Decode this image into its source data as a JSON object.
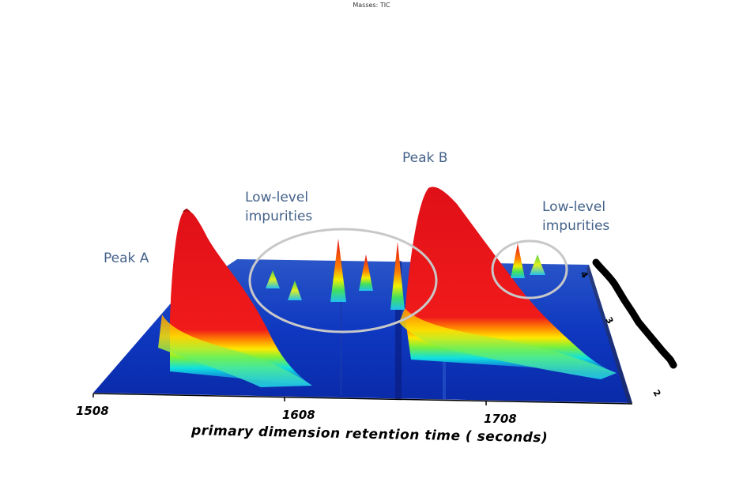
{
  "header": {
    "masses": "Masses: TIC"
  },
  "chart_data": {
    "type": "surface-3d",
    "xlabel": "primary dimension retention time   ( seconds)",
    "x_ticks": [
      "1508",
      "1608",
      "1708"
    ],
    "y_ticks": [
      "4",
      "3",
      "2"
    ],
    "annotations": {
      "peak_a": "Peak A",
      "peak_b": "Peak B",
      "impurities_1_line1": "Low-level",
      "impurities_1_line2": "impurities",
      "impurities_2_line1": "Low-level",
      "impurities_2_line2": "impurities"
    },
    "peaks": [
      {
        "name": "Peak A",
        "x": 1543,
        "height": 1.0,
        "width": 16
      },
      {
        "name": "Peak B",
        "x": 1660,
        "height": 1.0,
        "width": 18
      },
      {
        "name": "impurity",
        "x": 1595,
        "height": 0.12
      },
      {
        "name": "impurity",
        "x": 1603,
        "height": 0.1
      },
      {
        "name": "impurity",
        "x": 1628,
        "height": 0.28
      },
      {
        "name": "impurity",
        "x": 1640,
        "height": 0.18
      },
      {
        "name": "impurity",
        "x": 1655,
        "height": 0.36
      },
      {
        "name": "impurity",
        "x": 1725,
        "height": 0.12
      },
      {
        "name": "impurity",
        "x": 1733,
        "height": 0.08
      }
    ],
    "colors": {
      "floor": "#0a2cb8",
      "peak_top": "#e8141c",
      "annotation": "#44628a",
      "circle": "#c8c8c8"
    }
  }
}
